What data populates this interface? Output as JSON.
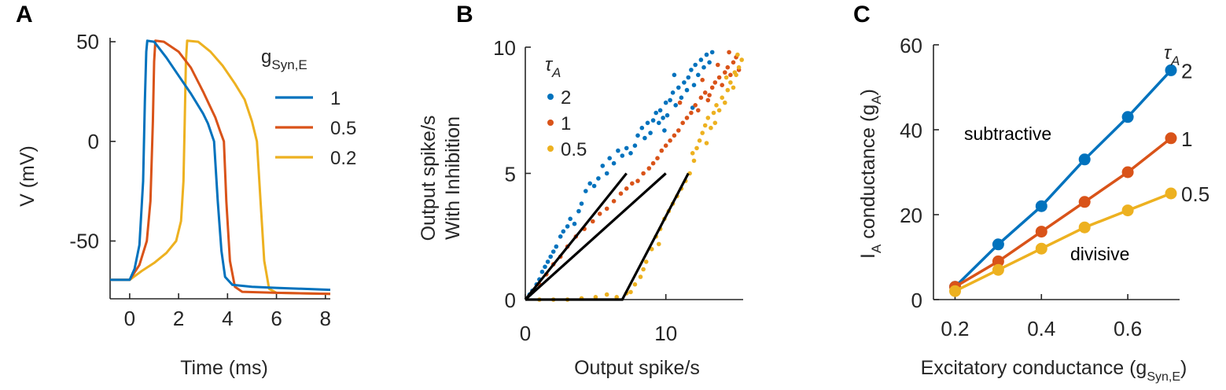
{
  "colors": {
    "c1": "#0072BD",
    "c2": "#D95319",
    "c3": "#EDB120",
    "axis": "#262626",
    "fit": "#000000"
  },
  "panels": {
    "A": {
      "label": "A"
    },
    "B": {
      "label": "B"
    },
    "C": {
      "label": "C"
    }
  },
  "chart_data": [
    {
      "panel": "A",
      "type": "line",
      "xlabel": "Time (ms)",
      "ylabel": "V (mV)",
      "xlim": [
        -0.8,
        8.2
      ],
      "ylim": [
        -79,
        52
      ],
      "xticks": [
        "0",
        "2",
        "4",
        "6",
        "8"
      ],
      "yticks": [
        "50",
        "0",
        "-50"
      ],
      "legend_title": "g",
      "legend_title_sub": "Syn,E",
      "legend_position": "top-right",
      "series": [
        {
          "name": "1",
          "color": "#0072BD",
          "points": [
            [
              -0.8,
              -69.5
            ],
            [
              0,
              -69.5
            ],
            [
              0.2,
              -64
            ],
            [
              0.4,
              -52
            ],
            [
              0.55,
              -20
            ],
            [
              0.62,
              20
            ],
            [
              0.68,
              45
            ],
            [
              0.72,
              50.5
            ],
            [
              1.0,
              50
            ],
            [
              1.5,
              42
            ],
            [
              2.0,
              33
            ],
            [
              2.5,
              24
            ],
            [
              3.0,
              14
            ],
            [
              3.2,
              9
            ],
            [
              3.45,
              0
            ],
            [
              3.6,
              -30
            ],
            [
              3.75,
              -55
            ],
            [
              3.9,
              -68
            ],
            [
              4.2,
              -72
            ],
            [
              5,
              -73
            ],
            [
              6,
              -73.5
            ],
            [
              8.2,
              -74.5
            ]
          ]
        },
        {
          "name": "0.5",
          "color": "#D95319",
          "points": [
            [
              -0.8,
              -69.5
            ],
            [
              0,
              -69.5
            ],
            [
              0.4,
              -62
            ],
            [
              0.7,
              -50
            ],
            [
              0.85,
              -30
            ],
            [
              0.95,
              10
            ],
            [
              1.0,
              40
            ],
            [
              1.05,
              50.5
            ],
            [
              1.4,
              50
            ],
            [
              2.0,
              45
            ],
            [
              2.5,
              37
            ],
            [
              3.0,
              25
            ],
            [
              3.5,
              12
            ],
            [
              3.7,
              5
            ],
            [
              3.85,
              0
            ],
            [
              3.95,
              -30
            ],
            [
              4.1,
              -60
            ],
            [
              4.3,
              -73
            ],
            [
              4.6,
              -75.5
            ],
            [
              6,
              -76
            ],
            [
              8.2,
              -76.5
            ]
          ]
        },
        {
          "name": "0.2",
          "color": "#EDB120",
          "points": [
            [
              -0.8,
              -69.5
            ],
            [
              0,
              -69.5
            ],
            [
              0.5,
              -65
            ],
            [
              1.0,
              -61
            ],
            [
              1.5,
              -56
            ],
            [
              1.9,
              -50
            ],
            [
              2.1,
              -40
            ],
            [
              2.2,
              -20
            ],
            [
              2.25,
              10
            ],
            [
              2.3,
              40
            ],
            [
              2.35,
              50.5
            ],
            [
              2.8,
              50
            ],
            [
              3.3,
              45
            ],
            [
              3.8,
              38
            ],
            [
              4.3,
              29
            ],
            [
              4.7,
              21
            ],
            [
              5.0,
              10
            ],
            [
              5.2,
              0
            ],
            [
              5.35,
              -30
            ],
            [
              5.5,
              -60
            ],
            [
              5.7,
              -74
            ],
            [
              6.0,
              -76
            ],
            [
              8.2,
              -76.5
            ]
          ]
        }
      ]
    },
    {
      "panel": "B",
      "type": "scatter",
      "xlabel": "Output spike/s",
      "ylabel": "Output spike/s",
      "ylabel2": "With Inhibition",
      "xlim": [
        0,
        15.5
      ],
      "ylim": [
        0,
        10
      ],
      "xticks": [
        "0",
        "10"
      ],
      "yticks": [
        "0",
        "5",
        "10"
      ],
      "legend_title": "τ",
      "legend_title_sub": "A",
      "legend_position": "top-left",
      "series": [
        {
          "name": "2",
          "color": "#0072BD",
          "points": [
            [
              0.3,
              0.2
            ],
            [
              0.5,
              0.35
            ],
            [
              0.8,
              0.6
            ],
            [
              1.0,
              0.8
            ],
            [
              1.2,
              1.1
            ],
            [
              1.4,
              1.3
            ],
            [
              1.6,
              1.5
            ],
            [
              1.8,
              1.7
            ],
            [
              2.0,
              1.9
            ],
            [
              2.2,
              2.1
            ],
            [
              2.5,
              2.5
            ],
            [
              2.7,
              2.7
            ],
            [
              3.0,
              2.9
            ],
            [
              3.2,
              3.2
            ],
            [
              3.5,
              3.0
            ],
            [
              3.8,
              3.5
            ],
            [
              4.0,
              3.8
            ],
            [
              4.3,
              4.3
            ],
            [
              4.6,
              4.6
            ],
            [
              4.9,
              4.5
            ],
            [
              5.2,
              4.8
            ],
            [
              5.5,
              5.3
            ],
            [
              5.8,
              5.0
            ],
            [
              6.0,
              5.6
            ],
            [
              6.3,
              5.4
            ],
            [
              6.6,
              5.9
            ],
            [
              6.9,
              5.7
            ],
            [
              7.2,
              6.0
            ],
            [
              7.5,
              5.8
            ],
            [
              7.8,
              6.1
            ],
            [
              8.0,
              6.5
            ],
            [
              8.3,
              6.8
            ],
            [
              8.5,
              6.4
            ],
            [
              8.7,
              7.0
            ],
            [
              8.9,
              6.6
            ],
            [
              9.1,
              7.1
            ],
            [
              9.3,
              7.4
            ],
            [
              9.5,
              7.0
            ],
            [
              9.6,
              7.5
            ],
            [
              9.8,
              7.2
            ],
            [
              10.0,
              7.8
            ],
            [
              10.1,
              7.3
            ],
            [
              10.3,
              7.9
            ],
            [
              10.5,
              8.2
            ],
            [
              10.7,
              7.7
            ],
            [
              10.9,
              8.4
            ],
            [
              11.1,
              8.0
            ],
            [
              11.3,
              8.6
            ],
            [
              11.5,
              8.3
            ],
            [
              11.6,
              8.8
            ],
            [
              11.8,
              9.1
            ],
            [
              12.0,
              8.5
            ],
            [
              12.1,
              9.3
            ],
            [
              12.3,
              8.9
            ],
            [
              12.5,
              9.5
            ],
            [
              12.7,
              9.2
            ],
            [
              12.9,
              9.7
            ],
            [
              13.1,
              9.4
            ],
            [
              13.3,
              9.8
            ],
            [
              11.9,
              7.6
            ],
            [
              10.6,
              8.9
            ],
            [
              9.9,
              6.7
            ]
          ]
        },
        {
          "name": "1",
          "color": "#D95319",
          "points": [
            [
              0.5,
              0.3
            ],
            [
              1.0,
              0.6
            ],
            [
              1.5,
              1.0
            ],
            [
              2.0,
              1.4
            ],
            [
              2.5,
              1.7
            ],
            [
              3.0,
              2.1
            ],
            [
              3.6,
              2.5
            ],
            [
              4.2,
              2.8
            ],
            [
              4.8,
              3.1
            ],
            [
              5.3,
              3.4
            ],
            [
              5.8,
              3.6
            ],
            [
              6.3,
              3.9
            ],
            [
              6.8,
              4.2
            ],
            [
              7.2,
              4.4
            ],
            [
              7.6,
              4.6
            ],
            [
              8.0,
              4.7
            ],
            [
              8.4,
              5.0
            ],
            [
              8.8,
              5.2
            ],
            [
              9.1,
              5.4
            ],
            [
              9.4,
              5.6
            ],
            [
              9.7,
              5.9
            ],
            [
              10.0,
              6.1
            ],
            [
              10.3,
              6.3
            ],
            [
              10.6,
              6.5
            ],
            [
              10.9,
              6.7
            ],
            [
              11.2,
              7.0
            ],
            [
              11.5,
              7.2
            ],
            [
              11.8,
              7.4
            ],
            [
              12.1,
              7.7
            ],
            [
              12.3,
              7.5
            ],
            [
              12.5,
              8.0
            ],
            [
              12.8,
              8.2
            ],
            [
              13.0,
              7.9
            ],
            [
              13.3,
              8.4
            ],
            [
              13.5,
              8.6
            ],
            [
              13.8,
              8.8
            ],
            [
              14.0,
              8.5
            ],
            [
              14.2,
              9.0
            ],
            [
              14.4,
              9.2
            ],
            [
              14.6,
              8.9
            ],
            [
              14.8,
              9.4
            ],
            [
              15.0,
              9.6
            ],
            [
              13.7,
              9.3
            ],
            [
              12.6,
              8.7
            ],
            [
              11.0,
              7.8
            ],
            [
              14.5,
              9.8
            ],
            [
              15.2,
              9.1
            ],
            [
              13.1,
              8.1
            ]
          ]
        },
        {
          "name": "0.5",
          "color": "#EDB120",
          "points": [
            [
              1.0,
              0.0
            ],
            [
              2.0,
              0.0
            ],
            [
              3.0,
              0.0
            ],
            [
              4.0,
              0.05
            ],
            [
              5.0,
              0.1
            ],
            [
              5.8,
              0.2
            ],
            [
              6.5,
              0.1
            ],
            [
              7.2,
              0.25
            ],
            [
              7.8,
              0.6
            ],
            [
              8.2,
              0.9
            ],
            [
              8.6,
              1.5
            ],
            [
              9.0,
              2.0
            ],
            [
              9.3,
              2.5
            ],
            [
              9.6,
              2.8
            ],
            [
              9.9,
              3.2
            ],
            [
              10.2,
              3.5
            ],
            [
              10.5,
              3.8
            ],
            [
              10.8,
              4.1
            ],
            [
              11.1,
              4.4
            ],
            [
              11.4,
              4.7
            ],
            [
              11.7,
              5.0
            ],
            [
              12.0,
              5.5
            ],
            [
              12.2,
              6.0
            ],
            [
              12.4,
              6.3
            ],
            [
              12.6,
              6.6
            ],
            [
              12.8,
              6.9
            ],
            [
              13.0,
              7.2
            ],
            [
              13.2,
              6.8
            ],
            [
              13.4,
              7.4
            ],
            [
              13.6,
              7.7
            ],
            [
              13.8,
              7.5
            ],
            [
              14.0,
              8.0
            ],
            [
              14.2,
              7.8
            ],
            [
              14.4,
              8.3
            ],
            [
              14.6,
              8.6
            ],
            [
              14.8,
              8.4
            ],
            [
              15.0,
              8.9
            ],
            [
              15.2,
              9.2
            ],
            [
              15.4,
              9.5
            ],
            [
              15.1,
              9.7
            ],
            [
              14.9,
              9.0
            ],
            [
              14.3,
              8.8
            ],
            [
              13.5,
              7.0
            ],
            [
              12.9,
              6.2
            ],
            [
              11.9,
              5.8
            ],
            [
              8.4,
              1.2
            ],
            [
              7.5,
              0.3
            ],
            [
              9.5,
              2.2
            ]
          ]
        }
      ],
      "fit_lines": [
        {
          "name": "2",
          "points": [
            [
              0,
              0
            ],
            [
              7.2,
              5.0
            ]
          ]
        },
        {
          "name": "1",
          "points": [
            [
              0,
              0
            ],
            [
              10.0,
              5.0
            ]
          ]
        },
        {
          "name": "0.5",
          "points": [
            [
              0,
              0
            ],
            [
              6.9,
              0
            ],
            [
              11.6,
              5.0
            ]
          ]
        }
      ]
    },
    {
      "panel": "C",
      "type": "line",
      "xlabel": "Excitatory conductance (g",
      "xlabel_sub": "Syn,E",
      "xlabel_end": ")",
      "ylabel": "I",
      "ylabel_sub": "A",
      "ylabel_rest": " conductance (g",
      "ylabel_sub2": "A",
      "ylabel_end": ")",
      "xlim": [
        0.15,
        0.72
      ],
      "ylim": [
        0,
        60
      ],
      "xticks": [
        "0.2",
        "0.4",
        "0.6"
      ],
      "yticks": [
        "0",
        "20",
        "40",
        "60"
      ],
      "legend_title": "τ",
      "legend_title_sub": "A",
      "annotations": {
        "subtractive": "subtractive",
        "divisive": "divisive"
      },
      "x": [
        0.2,
        0.3,
        0.4,
        0.5,
        0.6,
        0.7
      ],
      "series": [
        {
          "name": "2",
          "color": "#0072BD",
          "values": [
            3,
            13,
            22,
            33,
            43,
            54
          ]
        },
        {
          "name": "1",
          "color": "#D95319",
          "values": [
            3,
            9,
            16,
            23,
            30,
            38
          ]
        },
        {
          "name": "0.5",
          "color": "#EDB120",
          "values": [
            2,
            7,
            12,
            17,
            21,
            25
          ]
        }
      ]
    }
  ]
}
